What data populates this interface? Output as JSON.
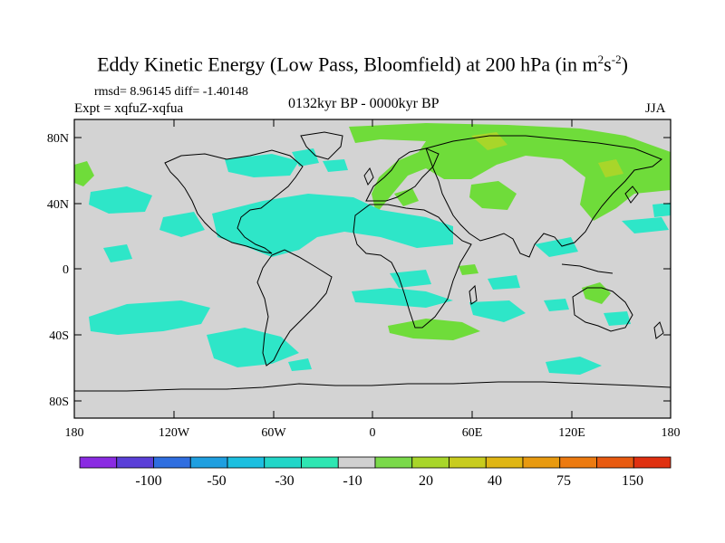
{
  "title": "Eddy Kinetic Energy (Low Pass, Bloomfield) at 200 hPa (in m",
  "title_sup1": "2",
  "title_mid": "s",
  "title_sup2": "-2",
  "title_end": ")",
  "stats": "rmsd= 8.96145  diff= -1.40148",
  "experiment": "Expt = xqfuZ-xqfua",
  "period": "0132kyr BP - 0000kyr BP",
  "season": "JJA",
  "lat_ticks": [
    "80N",
    "40N",
    "0",
    "40S",
    "80S"
  ],
  "lon_ticks": [
    "180",
    "120W",
    "60W",
    "0",
    "60E",
    "120E",
    "180"
  ],
  "colorbar": {
    "labels": [
      "-100",
      "-50",
      "-30",
      "-10",
      "20",
      "40",
      "75",
      "150"
    ],
    "colors": [
      "#8a2be2",
      "#5a3fd8",
      "#2f6ee0",
      "#1f9fe0",
      "#1cbfe0",
      "#22d6c8",
      "#2ee6b2",
      "#d0d0d0",
      "#7ad94a",
      "#a8d62a",
      "#c8cc1e",
      "#e0b614",
      "#e89a10",
      "#ec7a10",
      "#e85a10",
      "#e03010"
    ]
  },
  "colors": {
    "ocean_background": "#d3d3d3",
    "negative_anomaly": "#2ee6c8",
    "positive_anomaly": "#6fdc3a",
    "strong_positive": "#a8d62a",
    "coastline": "#000000"
  }
}
